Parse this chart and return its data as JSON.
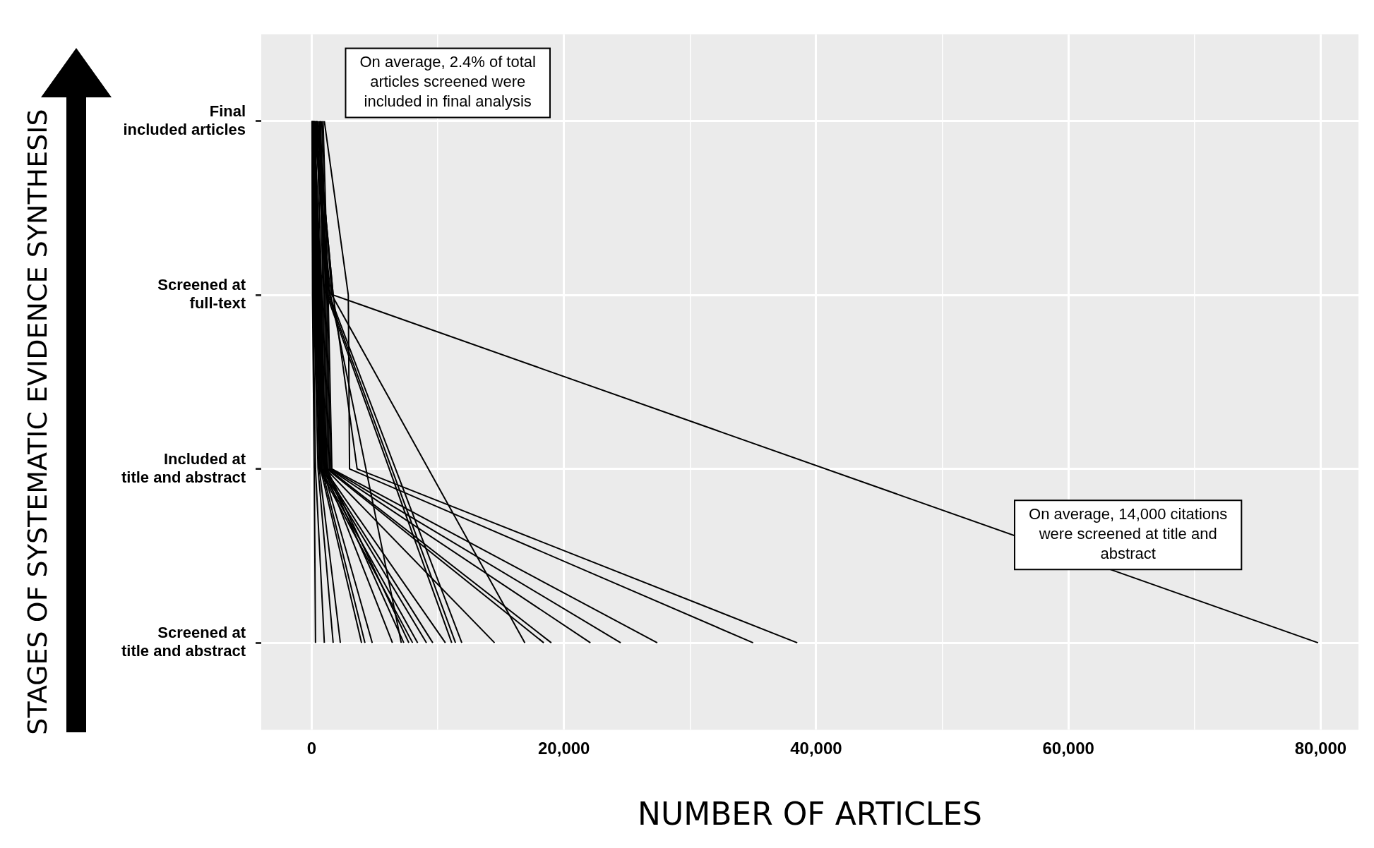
{
  "chart_data": {
    "type": "line",
    "orientation": "horizontal",
    "xlabel": "NUMBER OF ARTICLES",
    "ylabel": "STAGES OF SYSTEMATIC EVIDENCE SYNTHESIS",
    "categories": [
      "Final\nincluded articles",
      "Screened at\nfull-text",
      "Included at\ntitle and abstract",
      "Screened at\ntitle and abstract"
    ],
    "xlim": [
      -4000,
      83000
    ],
    "xticks": [
      0,
      {
        "value": 10000,
        "label": null
      },
      {
        "value": 20000,
        "label": "20,000"
      },
      {
        "value": 30000,
        "label": null
      },
      {
        "value": 40000,
        "label": "40,000"
      },
      {
        "value": 50000,
        "label": null
      },
      {
        "value": 60000,
        "label": "60,000"
      },
      {
        "value": 70000,
        "label": null
      },
      {
        "value": 80000,
        "label": "80,000"
      }
    ],
    "grid": true,
    "legend": false,
    "marker": "none",
    "line_style": "solid",
    "annotations": [
      "On average, 2.4% of total\narticles screened were\nincluded in final analysis",
      "On average, 14,000 citations\nwere screened at title and\nabstract"
    ],
    "series": [
      {
        "color": "#000000",
        "values": [
          20,
          60,
          200,
          300
        ]
      },
      {
        "color": "#000000",
        "values": [
          30,
          100,
          300,
          1000
        ]
      },
      {
        "color": "#000000",
        "values": [
          40,
          150,
          500,
          1700
        ]
      },
      {
        "color": "#000000",
        "values": [
          50,
          200,
          600,
          2270
        ]
      },
      {
        "color": "#000000",
        "values": [
          60,
          250,
          700,
          3950
        ]
      },
      {
        "color": "#000000",
        "values": [
          70,
          300,
          800,
          4220
        ]
      },
      {
        "color": "#000000",
        "values": [
          80,
          350,
          900,
          4800
        ]
      },
      {
        "color": "#000000",
        "values": [
          100,
          400,
          1000,
          6400
        ]
      },
      {
        "color": "#000000",
        "values": [
          150,
          1500,
          null,
          7100
        ]
      },
      {
        "color": "#000000",
        "values": [
          120,
          450,
          1100,
          7300
        ]
      },
      {
        "color": "#000000",
        "values": [
          130,
          500,
          1200,
          7700
        ]
      },
      {
        "color": "#000000",
        "values": [
          140,
          550,
          600,
          8000
        ]
      },
      {
        "color": "#000000",
        "values": [
          160,
          600,
          700,
          8400
        ]
      },
      {
        "color": "#000000",
        "values": [
          180,
          650,
          800,
          9100
        ]
      },
      {
        "color": "#000000",
        "values": [
          200,
          700,
          900,
          9600
        ]
      },
      {
        "color": "#000000",
        "values": [
          220,
          750,
          1000,
          10600
        ]
      },
      {
        "color": "#000000",
        "values": [
          250,
          1200,
          null,
          11100
        ]
      },
      {
        "color": "#000000",
        "values": [
          300,
          1300,
          null,
          11400
        ]
      },
      {
        "color": "#000000",
        "values": [
          350,
          1400,
          null,
          11900
        ]
      },
      {
        "color": "#000000",
        "values": [
          400,
          800,
          1100,
          14500
        ]
      },
      {
        "color": "#000000",
        "values": [
          500,
          1600,
          null,
          16900
        ]
      },
      {
        "color": "#000000",
        "values": [
          600,
          900,
          1200,
          18400
        ]
      },
      {
        "color": "#000000",
        "values": [
          650,
          1000,
          1300,
          19000
        ]
      },
      {
        "color": "#000000",
        "values": [
          700,
          1100,
          1400,
          22100
        ]
      },
      {
        "color": "#000000",
        "values": [
          800,
          1200,
          1500,
          24500
        ]
      },
      {
        "color": "#000000",
        "values": [
          900,
          1300,
          1600,
          27400
        ]
      },
      {
        "color": "#000000",
        "values": [
          1000,
          2900,
          3000,
          35000
        ]
      },
      {
        "color": "#000000",
        "values": [
          400,
          1700,
          3600,
          38500
        ]
      },
      {
        "color": "#000000",
        "values": [
          400,
          1700,
          null,
          79800
        ]
      }
    ]
  }
}
